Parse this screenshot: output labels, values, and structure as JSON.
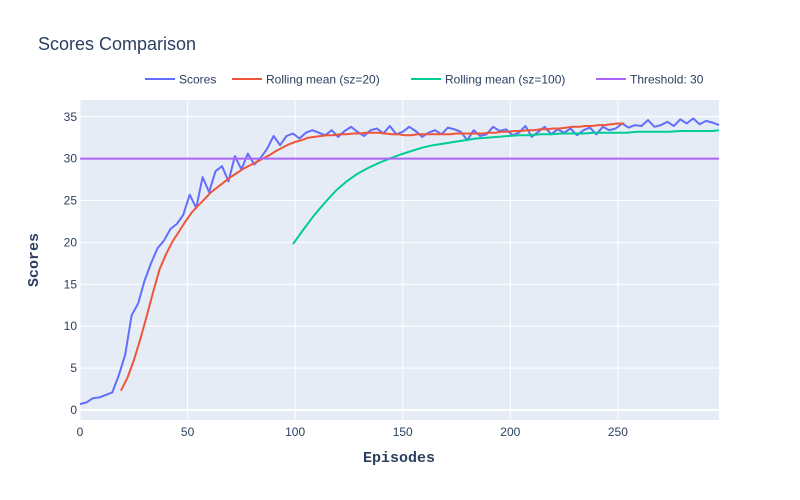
{
  "chart_data": {
    "type": "line",
    "title": "Scores Comparison",
    "xlabel": "Episodes",
    "ylabel": "Scores",
    "xlim": [
      0,
      297
    ],
    "ylim": [
      -1.2,
      37
    ],
    "x_ticks": [
      0,
      50,
      100,
      150,
      200,
      250
    ],
    "y_ticks": [
      0,
      5,
      10,
      15,
      20,
      25,
      30,
      35
    ],
    "grid": true,
    "legend_position": "top",
    "colors": {
      "plot_bg": "#e5ecf6",
      "grid": "#ffffff",
      "text": "#2a3f5f"
    },
    "series": [
      {
        "name": "Scores",
        "color": "#636efa",
        "x_start": 0,
        "x_step": 3,
        "values": [
          0.7,
          0.9,
          1.4,
          1.5,
          1.8,
          2.1,
          4.1,
          6.6,
          11.3,
          12.7,
          15.4,
          17.5,
          19.3,
          20.2,
          21.6,
          22.2,
          23.3,
          25.7,
          24.1,
          27.8,
          26.0,
          28.5,
          29.1,
          27.3,
          30.3,
          28.7,
          30.6,
          29.3,
          30.1,
          31.2,
          32.7,
          31.6,
          32.7,
          33.0,
          32.4,
          33.1,
          33.4,
          33.1,
          32.8,
          33.4,
          32.6,
          33.3,
          33.8,
          33.2,
          32.7,
          33.4,
          33.6,
          33.0,
          33.9,
          32.9,
          33.2,
          33.8,
          33.3,
          32.6,
          33.1,
          33.4,
          32.9,
          33.7,
          33.5,
          33.2,
          32.2,
          33.4,
          32.7,
          32.9,
          33.8,
          33.3,
          33.5,
          32.8,
          33.1,
          33.9,
          32.6,
          33.2,
          33.8,
          32.9,
          33.5,
          33.1,
          33.6,
          32.8,
          33.4,
          33.7,
          32.9,
          33.8,
          33.4,
          33.6,
          34.2,
          33.7,
          34.0,
          33.9,
          34.6,
          33.8,
          34.0,
          34.4,
          33.9,
          34.7,
          34.2,
          34.8,
          34.1,
          34.5,
          34.3,
          34.0
        ]
      },
      {
        "name": "Rolling mean (sz=20)",
        "color": "#ef553b",
        "x_start": 19,
        "x_step": 3,
        "values": [
          2.3,
          3.8,
          5.9,
          8.4,
          11.2,
          14.1,
          16.8,
          18.6,
          20.1,
          21.3,
          22.5,
          23.6,
          24.4,
          25.2,
          26.0,
          26.6,
          27.2,
          27.8,
          28.3,
          28.8,
          29.2,
          29.6,
          30.0,
          30.4,
          30.9,
          31.3,
          31.7,
          32.0,
          32.2,
          32.5,
          32.6,
          32.7,
          32.8,
          32.8,
          32.9,
          32.9,
          33.0,
          33.0,
          33.1,
          33.1,
          33.1,
          33.0,
          32.9,
          32.9,
          32.8,
          32.8,
          32.9,
          32.9,
          32.9,
          32.9,
          32.9,
          32.9,
          33.0,
          33.0,
          33.0,
          33.0,
          33.0,
          33.1,
          33.1,
          33.2,
          33.2,
          33.3,
          33.3,
          33.4,
          33.4,
          33.5,
          33.5,
          33.6,
          33.6,
          33.7,
          33.8,
          33.8,
          33.9,
          33.9,
          34.0,
          34.0,
          34.1,
          34.2,
          34.2
        ]
      },
      {
        "name": "Rolling mean (sz=100)",
        "color": "#00cc96",
        "x_start": 99,
        "x_step": 5,
        "values": [
          19.8,
          21.6,
          23.3,
          24.8,
          26.2,
          27.3,
          28.2,
          28.9,
          29.5,
          30.0,
          30.5,
          30.9,
          31.3,
          31.6,
          31.8,
          32.0,
          32.2,
          32.4,
          32.5,
          32.6,
          32.7,
          32.8,
          32.8,
          32.9,
          32.9,
          33.0,
          33.0,
          33.0,
          33.1,
          33.1,
          33.1,
          33.1,
          33.2,
          33.2,
          33.2,
          33.2,
          33.3,
          33.3,
          33.3,
          33.3,
          33.4
        ]
      },
      {
        "name": "Threshold: 30",
        "color": "#ab63fa",
        "x": [
          0,
          297
        ],
        "values": [
          30,
          30
        ]
      }
    ]
  }
}
